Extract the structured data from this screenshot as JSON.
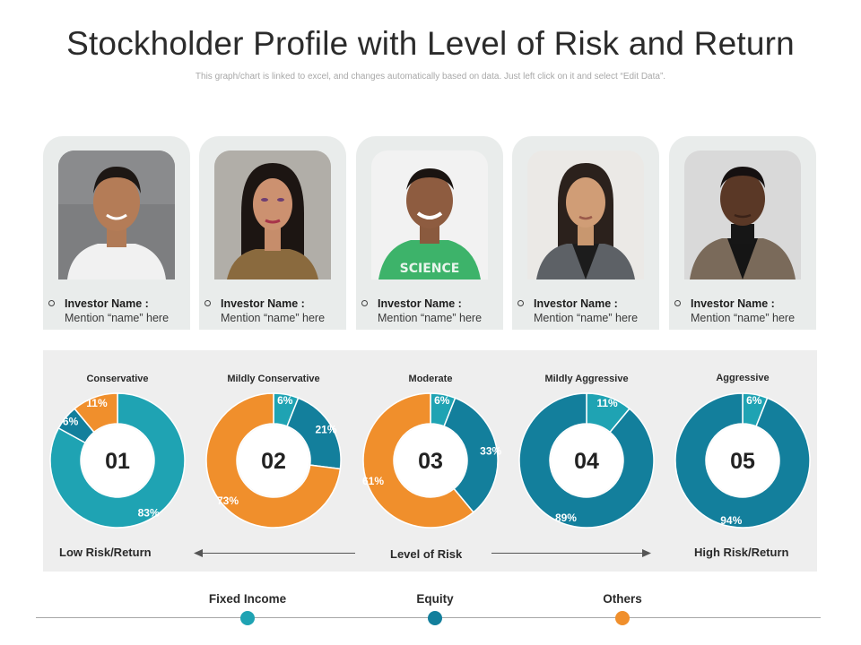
{
  "title": "Stockholder Profile with Level of Risk and Return",
  "subtitle": "This graph/chart is linked to excel, and changes automatically based on data. Just left click on it and select “Edit Data”.",
  "investors": [
    {
      "label": "Investor Name :",
      "name": "Mention “name” here"
    },
    {
      "label": "Investor Name :",
      "name": "Mention “name” here"
    },
    {
      "label": "Investor Name :",
      "name": "Mention “name” here"
    },
    {
      "label": "Investor Name :",
      "name": "Mention “name” here"
    },
    {
      "label": "Investor Name :",
      "name": "Mention “name” here"
    }
  ],
  "risk_axis": {
    "low": "Low Risk/Return",
    "center": "Level of Risk",
    "high": "High Risk/Return"
  },
  "legend": [
    {
      "name": "Fixed Income",
      "color": "#1fa3b3"
    },
    {
      "name": "Equity",
      "color": "#137f9c"
    },
    {
      "name": "Others",
      "color": "#f08f2c"
    }
  ],
  "colors": {
    "fixed_income": "#1fa3b3",
    "equity": "#137f9c",
    "others": "#f08f2c"
  },
  "chart_data": {
    "type": "donut",
    "series_names": [
      "Fixed Income",
      "Equity",
      "Others"
    ],
    "charts": [
      {
        "profile": "Conservative",
        "number": "01",
        "values": [
          83,
          6,
          11
        ],
        "labels": [
          "83%",
          "6%",
          "11%"
        ]
      },
      {
        "profile": "Mildly Conservative",
        "number": "02",
        "values": [
          6,
          21,
          73
        ],
        "labels": [
          "6%",
          "21%",
          "73%"
        ]
      },
      {
        "profile": "Moderate",
        "number": "03",
        "values": [
          6,
          33,
          61
        ],
        "labels": [
          "6%",
          "33%",
          "61%"
        ]
      },
      {
        "profile": "Mildly Aggressive",
        "number": "04",
        "values": [
          11,
          89,
          0
        ],
        "labels": [
          "11%",
          "89%",
          ""
        ]
      },
      {
        "profile": "Aggressive",
        "number": "05",
        "values": [
          6,
          94,
          0
        ],
        "labels": [
          "6%",
          "94%",
          ""
        ]
      }
    ]
  }
}
